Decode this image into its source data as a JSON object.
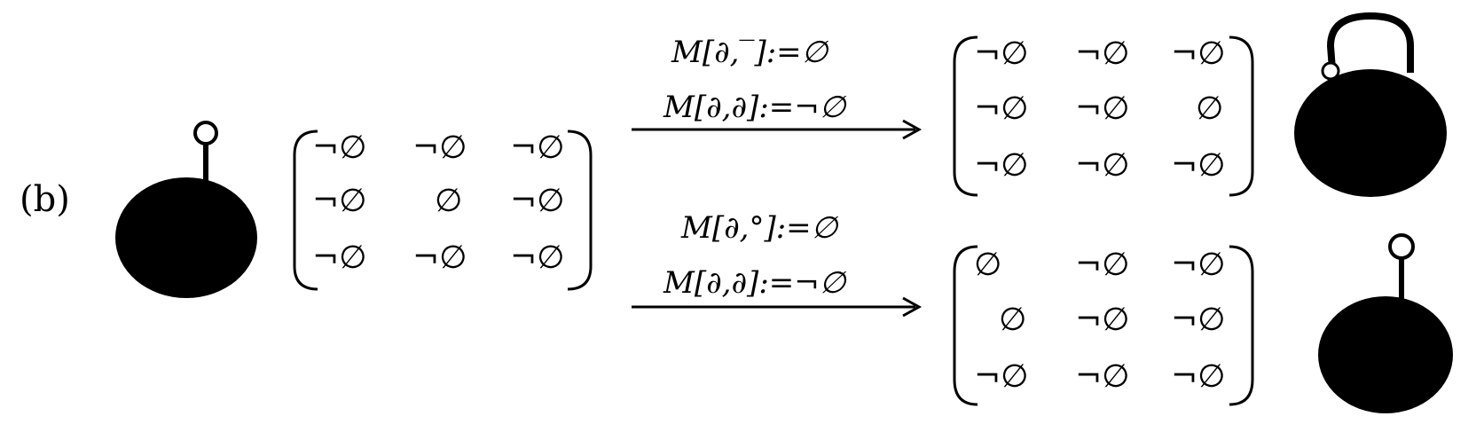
{
  "panel_label": "(b)",
  "input_matrix": [
    [
      "¬∅",
      "¬∅",
      "¬∅"
    ],
    [
      "¬∅",
      "∅",
      "¬∅"
    ],
    [
      "¬∅",
      "¬∅",
      "¬∅"
    ]
  ],
  "upper_branch": {
    "rule_1": "M[∂,‾]:=∅",
    "rule_2": "M[∂,∂]:=¬∅",
    "matrix": [
      [
        "¬∅",
        "¬∅",
        "¬∅"
      ],
      [
        "¬∅",
        "¬∅",
        "∅"
      ],
      [
        "¬∅",
        "¬∅",
        "¬∅"
      ]
    ]
  },
  "lower_branch": {
    "rule_1": "M[∂,°]:=∅",
    "rule_2": "M[∂,∂]:=¬∅",
    "matrix": [
      [
        "∅",
        "¬∅",
        "¬∅"
      ],
      [
        "∅",
        "¬∅",
        "¬∅"
      ],
      [
        "¬∅",
        "¬∅",
        "¬∅"
      ]
    ]
  },
  "colors": {
    "ink": "#000000",
    "background": "#ffffff"
  }
}
